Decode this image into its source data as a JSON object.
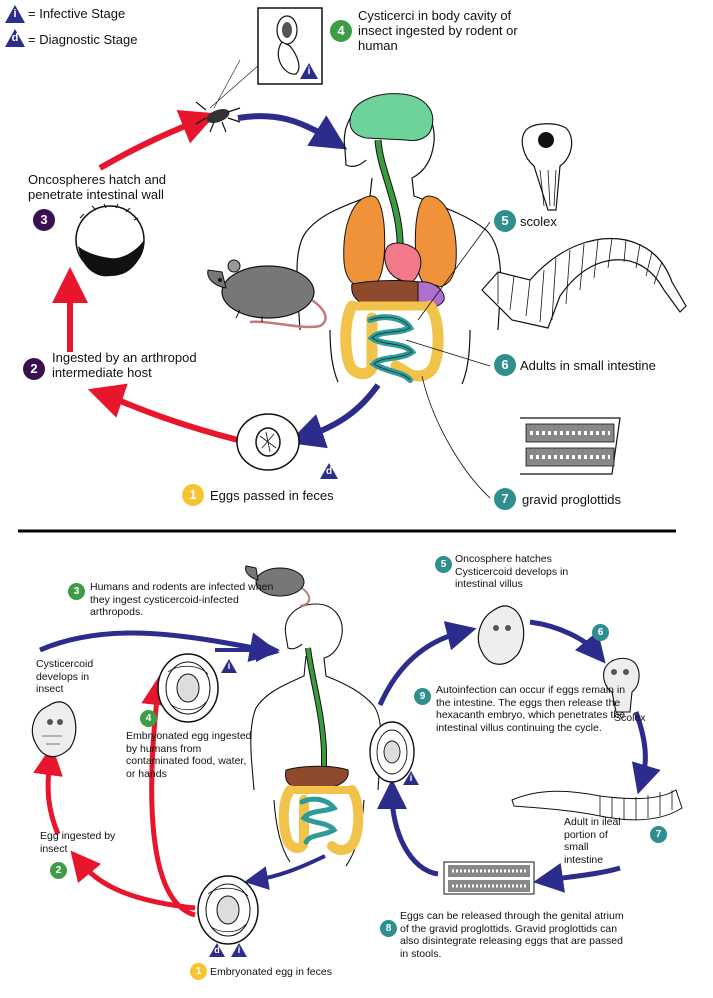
{
  "colors": {
    "infective": "#2b2c8c",
    "diagnostic": "#2b2c8c",
    "stage_purple": "#3a1050",
    "stage_green": "#3e9c47",
    "stage_teal": "#2f8f8f",
    "stage_yellow": "#f7c431",
    "arrow_red": "#e8162d",
    "arrow_blue": "#2b2c8c"
  },
  "legend": {
    "infective_letter": "i",
    "infective_label": "= Infective Stage",
    "diagnostic_letter": "d",
    "diagnostic_label": "= Diagnostic Stage"
  },
  "top": {
    "step1": {
      "num": "1",
      "label": "Eggs passed in feces"
    },
    "step2": {
      "num": "2",
      "label": "Ingested by an arthropod intermediate host"
    },
    "step3": {
      "num": "3",
      "label": "Oncospheres hatch and penetrate intestinal wall"
    },
    "step4": {
      "num": "4",
      "label": "Cysticerci in body cavity of insect ingested by rodent or human"
    },
    "step5": {
      "num": "5",
      "label": "scolex"
    },
    "step6": {
      "num": "6",
      "label": "Adults in small intestine"
    },
    "step7": {
      "num": "7",
      "label": "gravid proglottids"
    },
    "stage_i": "i",
    "stage_d": "d"
  },
  "bottom": {
    "step1": {
      "num": "1",
      "label": "Embryonated egg in feces"
    },
    "step2": {
      "num": "2",
      "label": "Egg ingested by insect"
    },
    "step_cysticercoid": "Cysticercoid develops in insect",
    "step3": {
      "num": "3",
      "label": "Humans and rodents are infected when they ingest cysticercoid-infected arthropods."
    },
    "step4": {
      "num": "4",
      "label": "Embryonated egg ingested by humans from contaminated food, water, or hands"
    },
    "step5": {
      "num": "5",
      "label": "Oncosphere hatches Cysticercoid develops in intestinal villus"
    },
    "step6": {
      "num": "6",
      "label": "Scolex"
    },
    "step7": {
      "num": "7",
      "label": "Adult in ileal portion of small intestine"
    },
    "step8": {
      "num": "8",
      "label": "Eggs can be released through the genital atrium of the gravid proglottids. Gravid proglottids can also disintegrate releasing eggs that are passed in stools."
    },
    "step9": {
      "num": "9",
      "label": "Autoinfection can occur if eggs remain in the intestine. The eggs then release the hexacanth embryo, which penetrates the intestinal villus continuing the cycle."
    },
    "stage_i": "i",
    "stage_d": "d"
  }
}
